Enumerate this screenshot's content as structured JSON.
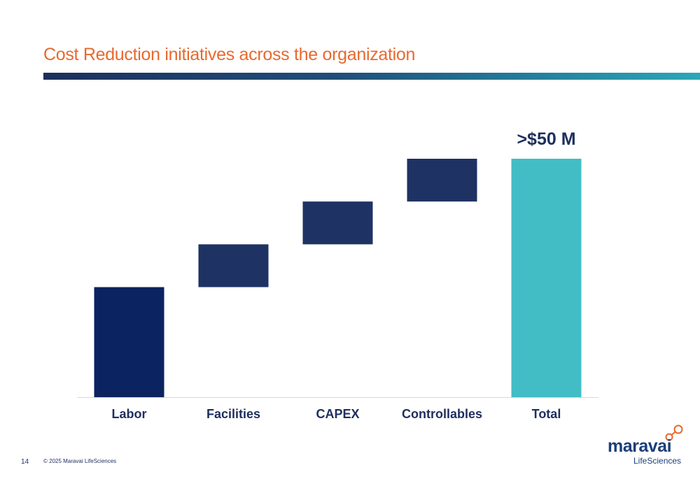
{
  "slide": {
    "title": "Cost Reduction initiatives across the organization",
    "page_number": "14",
    "copyright": "© 2025 Maravai LifeSciences"
  },
  "logo": {
    "name": "maravai",
    "tagline": "LifeSciences"
  },
  "colors": {
    "title": "#e8692e",
    "bar_labor": "#0b2360",
    "bar_step": "#1e3363",
    "bar_total": "#42bdc5",
    "label": "#1e2f5e"
  },
  "chart_data": {
    "type": "bar",
    "subtype": "waterfall",
    "categories": [
      "Labor",
      "Facilities",
      "CAPEX",
      "Controllables",
      "Total"
    ],
    "values": [
      18,
      7,
      7,
      7,
      39
    ],
    "bases": [
      0,
      18,
      25,
      32,
      0
    ],
    "total_label": ">$50 M",
    "title": "",
    "xlabel": "",
    "ylabel": "",
    "ylim": [
      0,
      39
    ],
    "grid": false,
    "legend": "none",
    "axis_values_shown": false
  }
}
